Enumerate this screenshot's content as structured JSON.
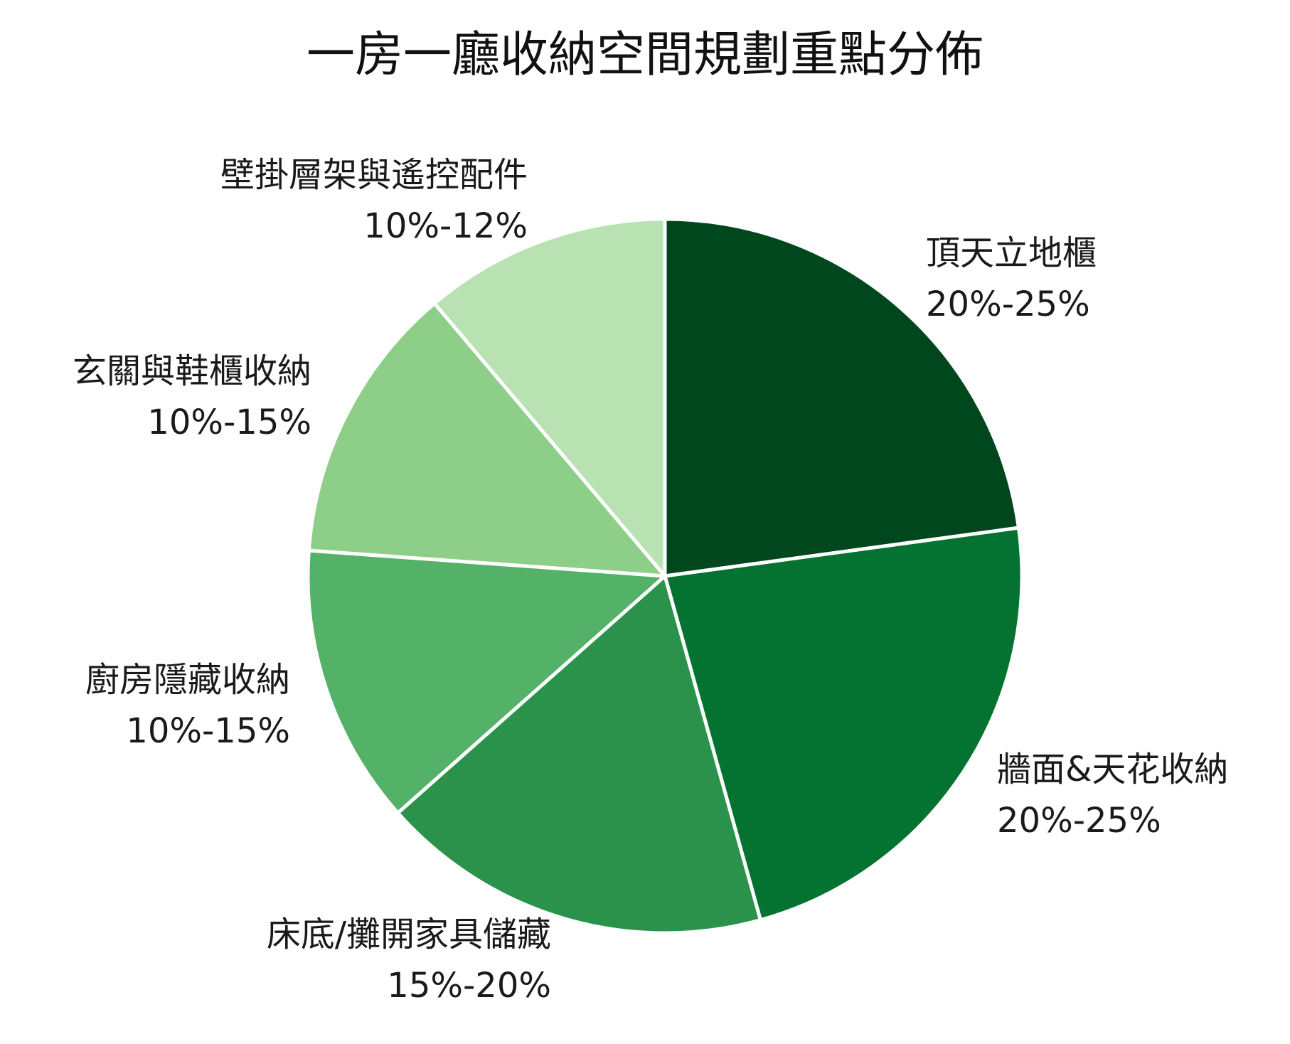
{
  "chart_data": {
    "type": "pie",
    "title": "一房一廳收納空間規劃重點分佈",
    "start_angle_deg": 0,
    "direction": "clockwise",
    "slices": [
      {
        "label": "頂天立地櫃",
        "range": "20%-25%",
        "value": 22.5,
        "color": "#00471e"
      },
      {
        "label": "牆面&天花收納",
        "range": "20%-25%",
        "value": 22.5,
        "color": "#047230"
      },
      {
        "label": "床底/攤開家具儲藏",
        "range": "15%-20%",
        "value": 17.5,
        "color": "#2b924b"
      },
      {
        "label": "廚房隱藏收納",
        "range": "10%-15%",
        "value": 12.5,
        "color": "#53b267"
      },
      {
        "label": "玄關與鞋櫃收納",
        "range": "10%-15%",
        "value": 12.5,
        "color": "#8dce89"
      },
      {
        "label": "壁掛層架與遙控配件",
        "range": "10%-12%",
        "value": 11.0,
        "color": "#b8e2b2"
      }
    ]
  }
}
